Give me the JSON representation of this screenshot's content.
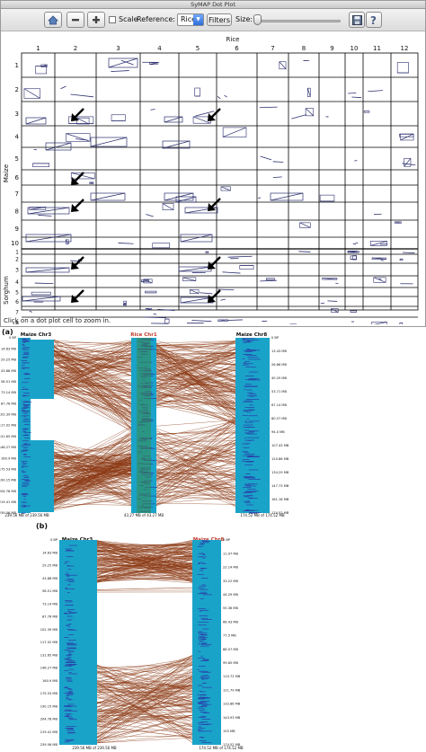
{
  "window": {
    "title": "SyMAP Dot Plot"
  },
  "toolbar": {
    "home_icon": "home-icon",
    "zoom_out_icon": "minus-icon",
    "zoom_in_icon": "plus-icon",
    "scale_label": "Scale",
    "reference_label": "Reference:",
    "reference_value": "Rice",
    "filters_label": "Filters",
    "size_label": "Size:",
    "save_icon": "save-icon",
    "help_icon": "question-icon"
  },
  "dotplot": {
    "x_species": "Rice",
    "x_chromosomes": [
      "1",
      "2",
      "3",
      "4",
      "5",
      "6",
      "7",
      "8",
      "9",
      "10",
      "11",
      "12"
    ],
    "y_group1": "Maize",
    "y_group1_chromosomes": [
      "1",
      "2",
      "3",
      "4",
      "5",
      "6",
      "7",
      "8",
      "9",
      "10"
    ],
    "y_group2": "Sorghum",
    "y_group2_chromosomes": [
      "1",
      "2",
      "3",
      "4",
      "5",
      "6",
      "7",
      "8",
      "9",
      "10"
    ],
    "status": "Click on a dot plot cell to zoom in."
  },
  "panel_a": {
    "tag": "(a)",
    "left_title": "Maize Chr3",
    "center_title": "Rice Chr1",
    "right_title": "Maize Chr8",
    "left_ticks": [
      "0 BP",
      "14.63 MB",
      "29.25 MB",
      "43.88 MB",
      "58.51 MB",
      "73.14 MB",
      "87.76 MB",
      "102.39 MB",
      "117.02 MB",
      "131.65 MB",
      "146.27 MB",
      "160.9 MB",
      "175.53 MB",
      "190.15 MB",
      "204.78 MB",
      "219.41 MB",
      "239.56 MB"
    ],
    "right_ticks": [
      "0 BP",
      "13.43 MB",
      "26.86 MB",
      "40.29 MB",
      "53.71 MB",
      "67.14 MB",
      "80.57 MB",
      "94.0 MB",
      "107.43 MB",
      "120.86 MB",
      "134.29 MB",
      "147.73 MB",
      "161.16 MB",
      "174.52 MB"
    ],
    "left_bottom": "239.56 MB of 239.56 MB",
    "center_bottom": "43.27 MB of 43.27 MB",
    "right_bottom": "174.52 MB of 174.52 MB"
  },
  "panel_b": {
    "tag": "(b)",
    "left_title": "Maize Chr3",
    "right_title": "Maize Chr8",
    "left_ticks": [
      "0 BP",
      "14.63 MB",
      "29.25 MB",
      "43.88 MB",
      "58.51 MB",
      "73.14 MB",
      "87.76 MB",
      "102.39 MB",
      "117.02 MB",
      "131.65 MB",
      "146.27 MB",
      "160.9 MB",
      "175.53 MB",
      "190.15 MB",
      "204.78 MB",
      "219.41 MB",
      "239.56 MB"
    ],
    "right_ticks": [
      "0 BP",
      "11.97 MB",
      "22.14 MB",
      "33.22 MB",
      "44.29 MB",
      "55.36 MB",
      "66.43 MB",
      "77.5 MB",
      "88.57 MB",
      "99.65 MB",
      "110.72 MB",
      "121.79 MB",
      "132.86 MB",
      "143.93 MB",
      "155 MB",
      "174.52 MB"
    ],
    "left_bottom": "239.56 MB of 239.56 MB",
    "right_bottom": "174.52 MB of 174.52 MB"
  },
  "colors": {
    "chromosome": "#1aa3c9",
    "chromosome_dark": "#2a3fa8",
    "link": "#8b3a14",
    "rice_title": "#c0392b",
    "block_line": "#2c2f6e"
  }
}
